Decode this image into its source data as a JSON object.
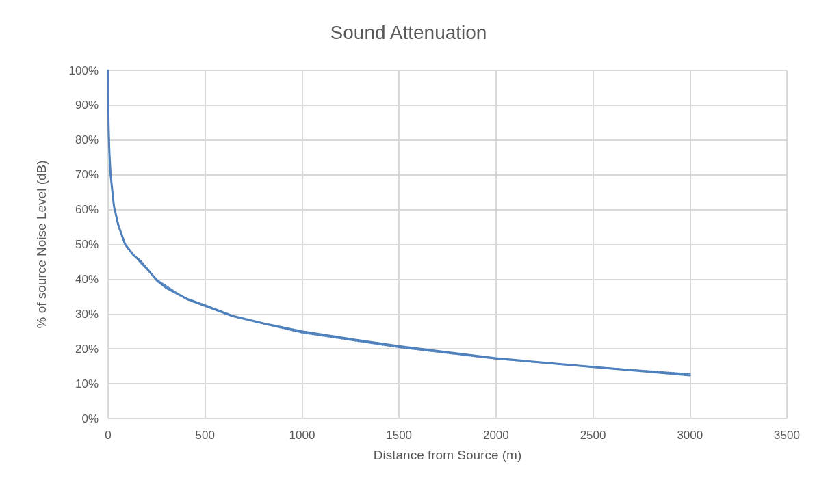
{
  "chart_data": {
    "type": "line",
    "title": "Sound Attenuation",
    "xlabel": "Distance from Source (m)",
    "ylabel": "% of source Noise Level (dB)",
    "xlim": [
      0,
      3500
    ],
    "xticks": [
      0,
      500,
      1000,
      1500,
      2000,
      2500,
      3000,
      3500
    ],
    "ylim": [
      0,
      100
    ],
    "yticks": [
      {
        "value": 0,
        "label": "0%"
      },
      {
        "value": 10,
        "label": "10%"
      },
      {
        "value": 20,
        "label": "20%"
      },
      {
        "value": 30,
        "label": "30%"
      },
      {
        "value": 40,
        "label": "40%"
      },
      {
        "value": 50,
        "label": "50%"
      },
      {
        "value": 60,
        "label": "60%"
      },
      {
        "value": 70,
        "label": "70%"
      },
      {
        "value": 80,
        "label": "80%"
      },
      {
        "value": 90,
        "label": "90%"
      },
      {
        "value": 100,
        "label": "100%"
      }
    ],
    "grid": true,
    "marker": "none",
    "series": [
      {
        "color": "#4f81bd",
        "line_style": "solid",
        "x": [
          0,
          1,
          3,
          7,
          13,
          30,
          53,
          88,
          130,
          171,
          254,
          300,
          405,
          500,
          641,
          800,
          1000,
          1250,
          1500,
          1750,
          2000,
          2250,
          2500,
          2750,
          3000
        ],
        "values": [
          100,
          90,
          82,
          76,
          70,
          61,
          55.5,
          50,
          47,
          45,
          39.5,
          37.5,
          34.4,
          32.5,
          29.5,
          27.3,
          25,
          22.8,
          20.8,
          19,
          17.3,
          16,
          14.8,
          13.6,
          12.4
        ]
      },
      {
        "color": "#4f81bd",
        "line_style": "dotted",
        "x": [
          1,
          7,
          13,
          30,
          53,
          88,
          171,
          254,
          405,
          641,
          1000,
          1500,
          2000,
          2500,
          3000
        ],
        "values": [
          92,
          76,
          70,
          61,
          55.3,
          49.8,
          44.5,
          39.8,
          34.2,
          29.3,
          24.6,
          20.4,
          17.1,
          14.8,
          12.8
        ]
      }
    ]
  }
}
